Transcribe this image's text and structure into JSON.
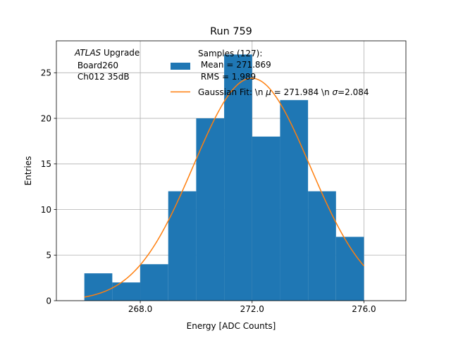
{
  "chart_data": {
    "type": "bar",
    "title": "Run 759",
    "xlabel": "Energy [ADC Counts]",
    "ylabel": "Entries",
    "xlim": [
      265.0,
      277.5
    ],
    "ylim": [
      0,
      28.5
    ],
    "grid": true,
    "bins": {
      "edges": [
        266,
        267,
        268,
        269,
        270,
        271,
        272,
        273,
        274,
        275,
        276
      ],
      "counts": [
        3,
        2,
        4,
        12,
        20,
        27,
        18,
        22,
        12,
        7
      ]
    },
    "fit": {
      "name": "Gaussian Fit",
      "mu": 271.984,
      "sigma": 2.084,
      "amplitude": 24.4,
      "x_range": [
        266.0,
        276.0
      ]
    },
    "x_ticks": [
      {
        "value": 268.0,
        "label": "268.0"
      },
      {
        "value": 272.0,
        "label": "272.0"
      },
      {
        "value": 276.0,
        "label": "276.0"
      }
    ],
    "y_ticks": [
      {
        "value": 0,
        "label": "0"
      },
      {
        "value": 5,
        "label": "5"
      },
      {
        "value": 10,
        "label": "10"
      },
      {
        "value": 15,
        "label": "15"
      },
      {
        "value": 20,
        "label": "20"
      },
      {
        "value": 25,
        "label": "25"
      }
    ],
    "annotation": {
      "italic": "ATLAS",
      "rest": " Upgrade",
      "line2": " Board260",
      "line3": " Ch012 35dB"
    },
    "legend": {
      "position": "top-right",
      "samples_line1": "Samples (127):",
      "samples_line2": " Mean = 271.869",
      "samples_line3": " RMS = 1.989",
      "fit_label_prefix": "Gaussian Fit: \\n ",
      "fit_mu_symbol": "μ",
      "fit_label_mid": " = 271.984 \\n ",
      "fit_sigma_symbol": "σ",
      "fit_label_suffix": "=2.084"
    },
    "colors": {
      "hist": "#1f77b4",
      "fit": "#ff7f0e",
      "grid": "#b0b0b0"
    }
  }
}
